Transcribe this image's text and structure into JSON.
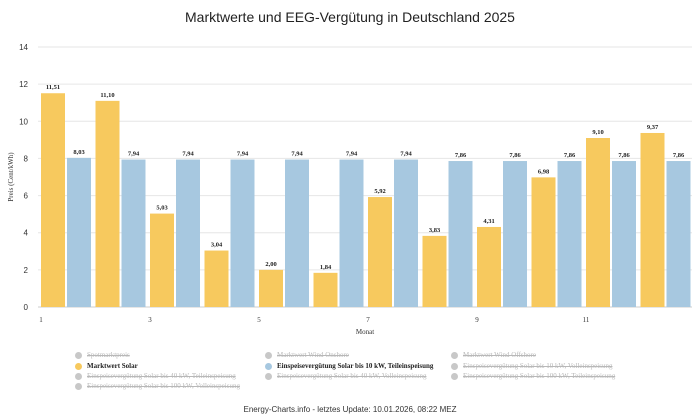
{
  "chart_data": {
    "type": "bar",
    "title": "Marktwerte und EEG-Vergütung in Deutschland 2025",
    "xlabel": "Monat",
    "ylabel": "Preis (Cent/kWh)",
    "ylim": [
      0,
      14
    ],
    "yticks": [
      "0",
      "2",
      "4",
      "6",
      "8",
      "10",
      "12",
      "14"
    ],
    "categories": [
      "1",
      "2",
      "3",
      "4",
      "5",
      "6",
      "7",
      "8",
      "9",
      "10",
      "11",
      "12"
    ],
    "xtick_labels": [
      "1",
      "",
      "3",
      "",
      "5",
      "",
      "7",
      "",
      "9",
      "",
      "11",
      ""
    ],
    "grid": true,
    "legend_position": "bottom",
    "series": [
      {
        "name": "Marktwert Solar",
        "color": "#f7c95e",
        "values": [
          11.51,
          11.1,
          5.03,
          3.04,
          2.0,
          1.84,
          5.92,
          3.83,
          4.31,
          6.98,
          9.1,
          9.37
        ],
        "labels": [
          "11,51",
          "11,10",
          "5,03",
          "3,04",
          "2,00",
          "1,84",
          "5,92",
          "3,83",
          "4,31",
          "6,98",
          "9,10",
          "9,37"
        ]
      },
      {
        "name": "Einspeisevergütung Solar bis 10 kW, Teileinspeisung",
        "color": "#a7c8e0",
        "values": [
          8.03,
          7.94,
          7.94,
          7.94,
          7.94,
          7.94,
          7.94,
          7.86,
          7.86,
          7.86,
          7.86,
          7.86
        ],
        "labels": [
          "8,03",
          "7,94",
          "7,94",
          "7,94",
          "7,94",
          "7,94",
          "7,94",
          "7,86",
          "7,86",
          "7,86",
          "7,86",
          "7,86"
        ]
      }
    ]
  },
  "legend": [
    {
      "label": "Spotmarktpreis",
      "color": "#c8c8c8",
      "state": "hidden"
    },
    {
      "label": "Marktwert Wind Onshore",
      "color": "#c8c8c8",
      "state": "hidden"
    },
    {
      "label": "Marktwert Wind Offshore",
      "color": "#c8c8c8",
      "state": "hidden"
    },
    {
      "label": "Marktwert Solar",
      "color": "#f7c95e",
      "state": "active"
    },
    {
      "label": "Einspeisevergütung Solar bis 10 kW, Teileinspeisung",
      "color": "#a7c8e0",
      "state": "active"
    },
    {
      "label": "Einspeisevergütung Solar bis 10 kW, Volleinspeisung",
      "color": "#c8c8c8",
      "state": "hidden"
    },
    {
      "label": "Einspeisevergütung Solar bis 40 kW, Teileinspeisung",
      "color": "#c8c8c8",
      "state": "hidden"
    },
    {
      "label": "Einspeisevergütung Solar bis 40 kW, Volleinspeisung",
      "color": "#c8c8c8",
      "state": "hidden"
    },
    {
      "label": "Einspeisevergütung Solar bis 100 kW, Teileinspeisung",
      "color": "#c8c8c8",
      "state": "hidden"
    },
    {
      "label": "Einspeisevergütung Solar bis 100 kW, Volleinspeisung",
      "color": "#c8c8c8",
      "state": "hidden"
    }
  ],
  "footer": "Energy-Charts.info - letztes Update: 10.01.2026, 08:22 MEZ"
}
